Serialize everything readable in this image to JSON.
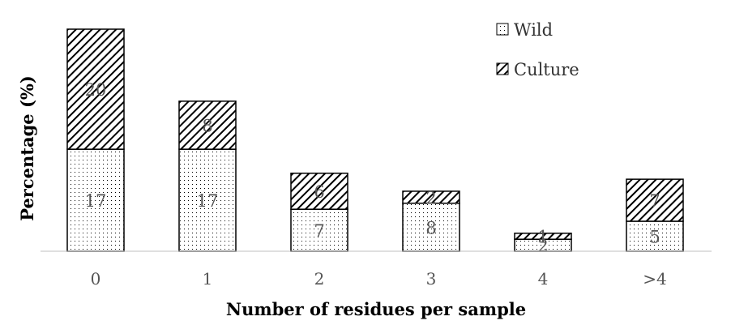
{
  "chart_data": {
    "type": "bar",
    "stacked": true,
    "categories": [
      "0",
      "1",
      "2",
      "3",
      "4",
      ">4"
    ],
    "series": [
      {
        "name": "Wild",
        "values": [
          17,
          17,
          7,
          8,
          2,
          5
        ],
        "pattern": "dots"
      },
      {
        "name": "Culture",
        "values": [
          20,
          8,
          6,
          2,
          1,
          7
        ],
        "pattern": "diagonal-hatch"
      }
    ],
    "title": "",
    "xlabel": "Number of residues per sample",
    "ylabel": "Percentage (%)",
    "ylim": [
      0,
      37
    ],
    "grid": false,
    "legend_position": "top-right",
    "colors": {
      "bar_outline": "#000000",
      "pattern": "#000000",
      "axis": "#bfbfbf",
      "label": "#555555"
    }
  }
}
